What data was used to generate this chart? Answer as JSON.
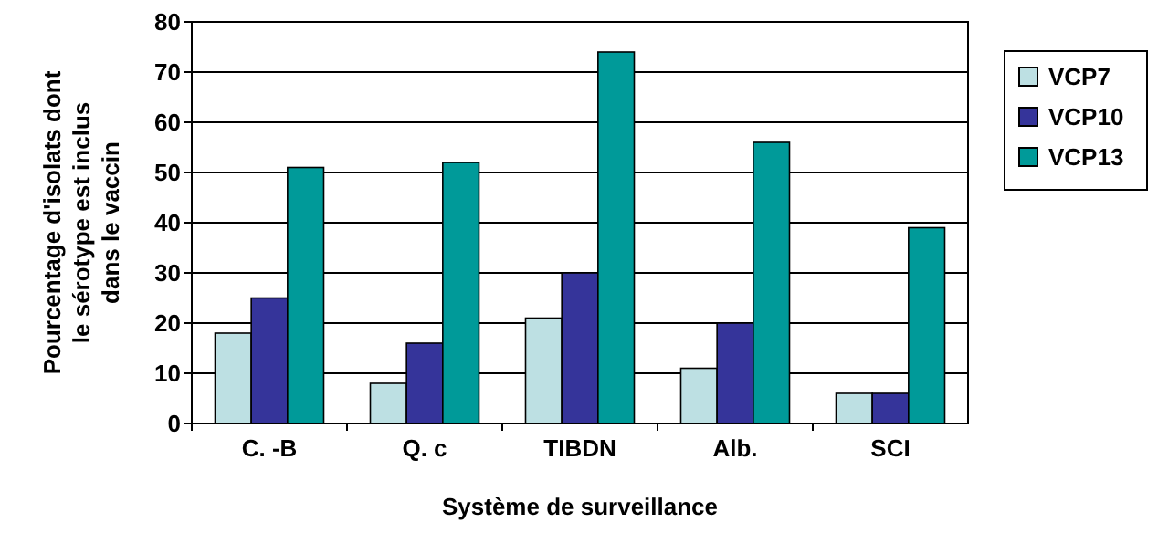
{
  "chart_data": {
    "type": "bar",
    "xlabel": "Système de surveillance",
    "ylabel": "Pourcentage d'isolats dont le sérotype est inclus dans le vaccin",
    "categories": [
      "C. -B",
      "Q. c",
      "TIBDN",
      "Alb.",
      "SCI"
    ],
    "series": [
      {
        "name": "VCP7",
        "color": "#bde0e3",
        "values": [
          18,
          8,
          21,
          11,
          6
        ]
      },
      {
        "name": "VCP10",
        "color": "#35349a",
        "values": [
          25,
          16,
          30,
          20,
          6
        ]
      },
      {
        "name": "VCP13",
        "color": "#009a99",
        "values": [
          51,
          52,
          74,
          56,
          39
        ]
      }
    ],
    "ylim": [
      0,
      80
    ],
    "yticks": [
      0,
      10,
      20,
      30,
      40,
      50,
      60,
      70,
      80
    ],
    "grid": "y",
    "legend": "right"
  }
}
